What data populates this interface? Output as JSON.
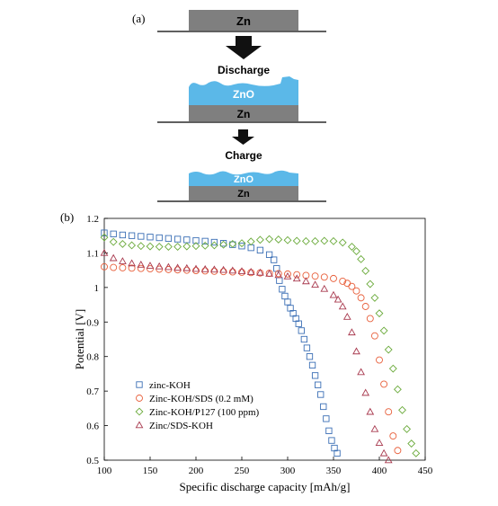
{
  "panel_a": {
    "label": "(a)",
    "top_layer": "Zn",
    "step1_label": "Discharge",
    "discharge_top": "ZnO",
    "discharge_bottom": "Zn",
    "step2_label": "Charge",
    "charge_top": "ZnO",
    "charge_bottom": "Zn"
  },
  "panel_b": {
    "label": "(b)"
  },
  "colors": {
    "zn_gray": "#7f7f7f",
    "zno_blue": "#5bb8e8",
    "arrow": "#111111"
  },
  "chart_data": {
    "type": "scatter",
    "xlabel": "Specific discharge capacity [mAh/g]",
    "ylabel": "Potential [V]",
    "xlim": [
      100,
      450
    ],
    "ylim": [
      0.5,
      1.2
    ],
    "x_ticks": [
      "100",
      "150",
      "200",
      "250",
      "300",
      "350",
      "400",
      "450"
    ],
    "y_ticks": [
      "0.5",
      "0.6",
      "0.7",
      "0.8",
      "0.9",
      "1",
      "1.1",
      "1.2"
    ],
    "grid": false,
    "legend_position": "lower-left",
    "series": [
      {
        "name": "zinc-KOH",
        "marker": "square",
        "color": "#3b6fb5",
        "x": [
          100,
          110,
          120,
          130,
          140,
          150,
          160,
          170,
          180,
          190,
          200,
          210,
          220,
          230,
          240,
          250,
          260,
          270,
          280,
          285,
          288,
          291,
          294,
          297,
          300,
          303,
          306,
          309,
          312,
          315,
          318,
          321,
          324,
          327,
          330,
          333,
          336,
          339,
          342,
          345,
          348,
          351,
          354
        ],
        "y": [
          1.158,
          1.155,
          1.152,
          1.15,
          1.148,
          1.146,
          1.144,
          1.142,
          1.14,
          1.138,
          1.136,
          1.134,
          1.131,
          1.128,
          1.124,
          1.12,
          1.115,
          1.108,
          1.095,
          1.08,
          1.055,
          1.02,
          0.995,
          0.975,
          0.958,
          0.94,
          0.925,
          0.91,
          0.895,
          0.875,
          0.85,
          0.825,
          0.8,
          0.775,
          0.745,
          0.718,
          0.69,
          0.655,
          0.62,
          0.585,
          0.557,
          0.535,
          0.52
        ]
      },
      {
        "name": "Zinc-KOH/SDS (0.2 mM)",
        "marker": "circle",
        "color": "#e8603c",
        "x": [
          100,
          110,
          120,
          130,
          140,
          150,
          160,
          170,
          180,
          190,
          200,
          210,
          220,
          230,
          240,
          250,
          260,
          270,
          280,
          290,
          300,
          310,
          320,
          330,
          340,
          350,
          360,
          365,
          370,
          375,
          380,
          385,
          390,
          395,
          400,
          405,
          410,
          415,
          420
        ],
        "y": [
          1.06,
          1.058,
          1.057,
          1.056,
          1.055,
          1.054,
          1.053,
          1.052,
          1.051,
          1.05,
          1.049,
          1.048,
          1.047,
          1.046,
          1.045,
          1.044,
          1.043,
          1.042,
          1.041,
          1.04,
          1.039,
          1.037,
          1.035,
          1.033,
          1.03,
          1.026,
          1.018,
          1.012,
          1.003,
          0.99,
          0.97,
          0.945,
          0.91,
          0.86,
          0.79,
          0.72,
          0.64,
          0.57,
          0.528
        ]
      },
      {
        "name": "Zinc-KOH/P127 (100 ppm)",
        "marker": "diamond",
        "color": "#6aaa3a",
        "x": [
          100,
          110,
          120,
          130,
          140,
          150,
          160,
          170,
          180,
          190,
          200,
          210,
          220,
          230,
          240,
          250,
          260,
          270,
          280,
          290,
          300,
          310,
          320,
          330,
          340,
          350,
          360,
          370,
          375,
          380,
          385,
          390,
          395,
          400,
          405,
          410,
          415,
          420,
          425,
          430,
          435,
          440
        ],
        "y": [
          1.145,
          1.132,
          1.126,
          1.122,
          1.12,
          1.119,
          1.118,
          1.118,
          1.118,
          1.119,
          1.12,
          1.121,
          1.122,
          1.124,
          1.126,
          1.128,
          1.133,
          1.138,
          1.14,
          1.139,
          1.137,
          1.135,
          1.134,
          1.134,
          1.135,
          1.134,
          1.13,
          1.118,
          1.105,
          1.082,
          1.048,
          1.01,
          0.97,
          0.925,
          0.875,
          0.82,
          0.765,
          0.705,
          0.645,
          0.59,
          0.548,
          0.52
        ]
      },
      {
        "name": "Zinc/SDS-KOH",
        "marker": "triangle",
        "color": "#a8394e",
        "x": [
          100,
          110,
          120,
          130,
          140,
          150,
          160,
          170,
          180,
          190,
          200,
          210,
          220,
          230,
          240,
          250,
          260,
          270,
          280,
          290,
          300,
          310,
          320,
          330,
          340,
          350,
          355,
          360,
          365,
          370,
          375,
          380,
          385,
          390,
          395,
          400,
          405,
          410
        ],
        "y": [
          1.1,
          1.085,
          1.076,
          1.07,
          1.066,
          1.063,
          1.061,
          1.059,
          1.057,
          1.056,
          1.054,
          1.053,
          1.052,
          1.051,
          1.049,
          1.047,
          1.045,
          1.043,
          1.04,
          1.036,
          1.032,
          1.026,
          1.018,
          1.008,
          0.996,
          0.978,
          0.965,
          0.945,
          0.915,
          0.87,
          0.815,
          0.755,
          0.695,
          0.64,
          0.59,
          0.55,
          0.52,
          0.5
        ]
      }
    ]
  }
}
